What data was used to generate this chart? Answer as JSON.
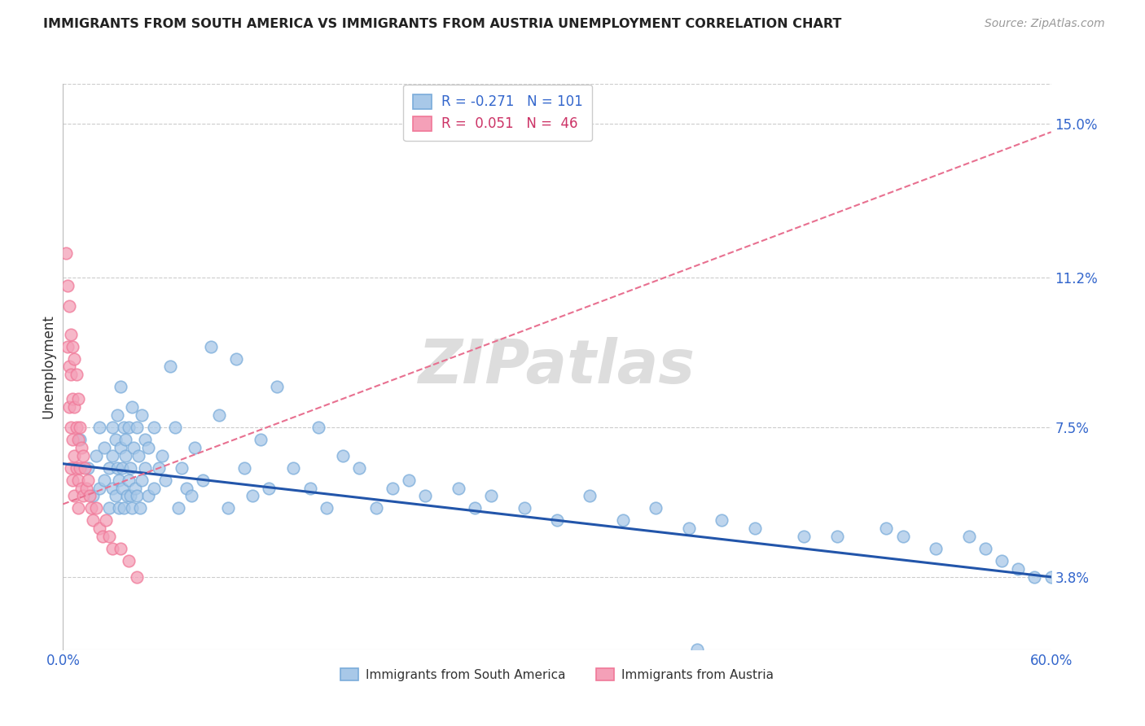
{
  "title": "IMMIGRANTS FROM SOUTH AMERICA VS IMMIGRANTS FROM AUSTRIA UNEMPLOYMENT CORRELATION CHART",
  "source": "Source: ZipAtlas.com",
  "ylabel": "Unemployment",
  "watermark": "ZIPatlas",
  "xlim": [
    0.0,
    0.6
  ],
  "ylim": [
    0.02,
    0.16
  ],
  "xticks": [
    0.0,
    0.1,
    0.2,
    0.3,
    0.4,
    0.5,
    0.6
  ],
  "xticklabels": [
    "0.0%",
    "",
    "",
    "",
    "",
    "",
    "60.0%"
  ],
  "ytick_positions": [
    0.038,
    0.075,
    0.112,
    0.15
  ],
  "ytick_labels": [
    "3.8%",
    "7.5%",
    "11.2%",
    "15.0%"
  ],
  "blue_color": "#a8c8e8",
  "pink_color": "#f4a0b8",
  "blue_edge_color": "#7aacda",
  "pink_edge_color": "#f07898",
  "blue_line_color": "#2255aa",
  "pink_line_color": "#e87090",
  "legend_label_blue": "Immigrants from South America",
  "legend_label_pink": "Immigrants from Austria",
  "blue_line_x0": 0.0,
  "blue_line_y0": 0.066,
  "blue_line_x1": 0.6,
  "blue_line_y1": 0.038,
  "pink_line_x0": 0.0,
  "pink_line_y0": 0.056,
  "pink_line_x1": 0.6,
  "pink_line_y1": 0.148,
  "blue_scatter_x": [
    0.01,
    0.015,
    0.018,
    0.02,
    0.022,
    0.022,
    0.025,
    0.025,
    0.028,
    0.028,
    0.03,
    0.03,
    0.03,
    0.032,
    0.032,
    0.033,
    0.033,
    0.034,
    0.034,
    0.035,
    0.035,
    0.036,
    0.036,
    0.037,
    0.037,
    0.038,
    0.038,
    0.039,
    0.04,
    0.04,
    0.041,
    0.041,
    0.042,
    0.042,
    0.043,
    0.044,
    0.045,
    0.045,
    0.046,
    0.047,
    0.048,
    0.048,
    0.05,
    0.05,
    0.052,
    0.052,
    0.055,
    0.055,
    0.058,
    0.06,
    0.062,
    0.065,
    0.068,
    0.07,
    0.072,
    0.075,
    0.078,
    0.08,
    0.085,
    0.09,
    0.095,
    0.1,
    0.105,
    0.11,
    0.115,
    0.12,
    0.125,
    0.13,
    0.14,
    0.15,
    0.155,
    0.16,
    0.17,
    0.18,
    0.19,
    0.2,
    0.21,
    0.22,
    0.24,
    0.25,
    0.26,
    0.28,
    0.3,
    0.32,
    0.34,
    0.36,
    0.38,
    0.4,
    0.42,
    0.45,
    0.47,
    0.5,
    0.51,
    0.53,
    0.55,
    0.56,
    0.57,
    0.58,
    0.59,
    0.6,
    0.385
  ],
  "blue_scatter_y": [
    0.072,
    0.065,
    0.058,
    0.068,
    0.075,
    0.06,
    0.062,
    0.07,
    0.055,
    0.065,
    0.075,
    0.068,
    0.06,
    0.072,
    0.058,
    0.065,
    0.078,
    0.055,
    0.062,
    0.085,
    0.07,
    0.065,
    0.06,
    0.075,
    0.055,
    0.068,
    0.072,
    0.058,
    0.075,
    0.062,
    0.058,
    0.065,
    0.08,
    0.055,
    0.07,
    0.06,
    0.075,
    0.058,
    0.068,
    0.055,
    0.078,
    0.062,
    0.072,
    0.065,
    0.07,
    0.058,
    0.075,
    0.06,
    0.065,
    0.068,
    0.062,
    0.09,
    0.075,
    0.055,
    0.065,
    0.06,
    0.058,
    0.07,
    0.062,
    0.095,
    0.078,
    0.055,
    0.092,
    0.065,
    0.058,
    0.072,
    0.06,
    0.085,
    0.065,
    0.06,
    0.075,
    0.055,
    0.068,
    0.065,
    0.055,
    0.06,
    0.062,
    0.058,
    0.06,
    0.055,
    0.058,
    0.055,
    0.052,
    0.058,
    0.052,
    0.055,
    0.05,
    0.052,
    0.05,
    0.048,
    0.048,
    0.05,
    0.048,
    0.045,
    0.048,
    0.045,
    0.042,
    0.04,
    0.038,
    0.038,
    0.02
  ],
  "pink_scatter_x": [
    0.002,
    0.003,
    0.003,
    0.004,
    0.004,
    0.004,
    0.005,
    0.005,
    0.005,
    0.005,
    0.006,
    0.006,
    0.006,
    0.006,
    0.007,
    0.007,
    0.007,
    0.007,
    0.008,
    0.008,
    0.008,
    0.009,
    0.009,
    0.009,
    0.009,
    0.01,
    0.01,
    0.011,
    0.011,
    0.012,
    0.012,
    0.013,
    0.014,
    0.015,
    0.016,
    0.017,
    0.018,
    0.02,
    0.022,
    0.024,
    0.026,
    0.028,
    0.03,
    0.035,
    0.04,
    0.045
  ],
  "pink_scatter_y": [
    0.118,
    0.11,
    0.095,
    0.105,
    0.09,
    0.08,
    0.098,
    0.088,
    0.075,
    0.065,
    0.095,
    0.082,
    0.072,
    0.062,
    0.092,
    0.08,
    0.068,
    0.058,
    0.088,
    0.075,
    0.065,
    0.082,
    0.072,
    0.062,
    0.055,
    0.075,
    0.065,
    0.07,
    0.06,
    0.068,
    0.058,
    0.065,
    0.06,
    0.062,
    0.058,
    0.055,
    0.052,
    0.055,
    0.05,
    0.048,
    0.052,
    0.048,
    0.045,
    0.045,
    0.042,
    0.038
  ]
}
